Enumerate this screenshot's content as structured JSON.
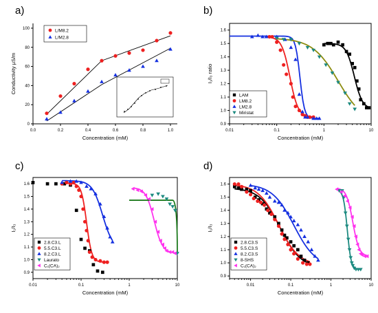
{
  "colors": {
    "red": "#ee2020",
    "blue": "#1530e0",
    "black": "#000000",
    "teal": "#1c8a80",
    "magenta": "#ff33ee",
    "olive": "#8c8c10",
    "darkgreen": "#1d7a1d"
  },
  "chart_data": [
    {
      "panel": "a)",
      "type": "scatter",
      "xlabel": "Concentration (mM)",
      "ylabel": "Conductivity μS/m",
      "xlim": [
        0,
        1.05
      ],
      "ylim": [
        0,
        105
      ],
      "xticks": [
        0.0,
        0.2,
        0.4,
        0.6,
        0.8,
        1.0
      ],
      "yticks": [
        0,
        20,
        40,
        60,
        80,
        100
      ],
      "xticklabels": [
        "0.0",
        "0.2",
        "0.4",
        "0.6",
        "0.8",
        "1.0"
      ],
      "yticklabels": [
        "0",
        "20",
        "40",
        "60",
        "80",
        "100"
      ],
      "legend_position": "top-left",
      "series": [
        {
          "name": "L/M8.2",
          "marker": "circle",
          "color": "red",
          "x": [
            0.1,
            0.2,
            0.3,
            0.4,
            0.5,
            0.6,
            0.7,
            0.8,
            0.9,
            1.0
          ],
          "y": [
            11,
            29,
            42,
            57,
            66,
            71,
            74,
            77,
            87,
            95
          ]
        },
        {
          "name": "L/M2.8",
          "marker": "triangle",
          "color": "blue",
          "x": [
            0.1,
            0.2,
            0.3,
            0.4,
            0.5,
            0.6,
            0.7,
            0.8,
            0.9,
            1.0
          ],
          "y": [
            5,
            12,
            24,
            34,
            44,
            51,
            56,
            60,
            66,
            78
          ]
        }
      ],
      "lines": [
        {
          "color": "black",
          "points": [
            [
              0.1,
              10
            ],
            [
              0.5,
              66
            ],
            [
              1.0,
              92
            ]
          ]
        },
        {
          "color": "black",
          "points": [
            [
              0.1,
              3
            ],
            [
              0.5,
              41
            ],
            [
              1.0,
              79
            ]
          ]
        }
      ],
      "inset": {
        "note": "small inset plot of conductivity vs concentration with a break point"
      }
    },
    {
      "panel": "b)",
      "type": "scatter",
      "xscale": "log",
      "xlabel": "Concentration (mM)",
      "ylabel": "I₁/I₃ ratio",
      "xlim": [
        0.01,
        10
      ],
      "ylim": [
        0.9,
        1.65
      ],
      "xticks": [
        0.01,
        0.1,
        1,
        10
      ],
      "xticklabels": [
        "0.01",
        "0.1",
        "1",
        "10"
      ],
      "yticks": [
        0.9,
        1.0,
        1.1,
        1.2,
        1.3,
        1.4,
        1.5,
        1.6
      ],
      "yticklabels": [
        "0.9",
        "1.0",
        "1.1",
        "1.2",
        "1.3",
        "1.4",
        "1.5",
        "1.6"
      ],
      "legend_position": "bottom-left",
      "series": [
        {
          "name": "LAM",
          "marker": "square",
          "color": "black",
          "x": [
            1.0,
            1.2,
            1.4,
            1.6,
            2.0,
            2.5,
            3.0,
            3.5,
            4.0,
            4.5,
            5.0,
            5.5,
            6.0,
            7.0,
            8.0,
            9.0
          ],
          "y": [
            1.49,
            1.5,
            1.5,
            1.49,
            1.51,
            1.49,
            1.44,
            1.42,
            1.35,
            1.32,
            1.22,
            1.16,
            1.08,
            1.05,
            1.02,
            1.02
          ]
        },
        {
          "name": "LM8.2",
          "marker": "circle",
          "color": "red",
          "x": [
            0.07,
            0.08,
            0.1,
            0.12,
            0.14,
            0.16,
            0.2,
            0.22,
            0.25,
            0.3,
            0.35,
            0.4,
            0.45,
            0.5,
            0.6
          ],
          "y": [
            1.55,
            1.55,
            1.51,
            1.45,
            1.34,
            1.27,
            1.2,
            1.1,
            1.03,
            1.0,
            0.97,
            0.96,
            0.95,
            0.95,
            0.95
          ]
        },
        {
          "name": "LM2.8",
          "marker": "triangle",
          "color": "blue",
          "x": [
            0.03,
            0.04,
            0.05,
            0.06,
            0.1,
            0.15,
            0.2,
            0.25,
            0.3,
            0.35,
            0.4,
            0.45,
            0.6,
            0.7,
            0.8
          ],
          "y": [
            1.55,
            1.56,
            1.55,
            1.55,
            1.55,
            1.53,
            1.47,
            1.38,
            1.12,
            0.99,
            0.95,
            0.95,
            0.94,
            0.94,
            0.94
          ]
        },
        {
          "name": "Miristat",
          "marker": "triangle-down",
          "color": "teal",
          "x": [
            0.1,
            0.14,
            0.2,
            0.3,
            0.45,
            0.6,
            0.8,
            1.1,
            1.5,
            2.0,
            2.8,
            3.5,
            4.5
          ],
          "y": [
            1.54,
            1.53,
            1.53,
            1.5,
            1.47,
            1.45,
            1.4,
            1.34,
            1.28,
            1.21,
            1.13,
            1.05,
            1.01
          ]
        }
      ]
    },
    {
      "panel": "c)",
      "type": "scatter",
      "xscale": "log",
      "xlabel": "Concentration (mM)",
      "ylabel": "I₁/I₃",
      "xlim": [
        0.01,
        10
      ],
      "ylim": [
        0.85,
        1.65
      ],
      "xticks": [
        0.01,
        0.1,
        1,
        10
      ],
      "xticklabels": [
        "0.01",
        "0.1",
        "1",
        "10"
      ],
      "yticks": [
        0.9,
        1.0,
        1.1,
        1.2,
        1.3,
        1.4,
        1.5,
        1.6
      ],
      "yticklabels": [
        "0.9",
        "1.0",
        "1.1",
        "1.2",
        "1.3",
        "1.4",
        "1.5",
        "1.6"
      ],
      "legend_position": "bottom-left",
      "series": [
        {
          "name": "2.8.C3.L",
          "marker": "square",
          "color": "black",
          "x": [
            0.01,
            0.02,
            0.03,
            0.045,
            0.06,
            0.08,
            0.1,
            0.12,
            0.15,
            0.18,
            0.22,
            0.28
          ],
          "y": [
            1.61,
            1.6,
            1.6,
            1.6,
            1.59,
            1.39,
            1.16,
            1.09,
            1.07,
            0.96,
            0.91,
            0.9
          ]
        },
        {
          "name": "5.5.C3.L",
          "marker": "circle",
          "color": "red",
          "x": [
            0.04,
            0.05,
            0.06,
            0.07,
            0.08,
            0.09,
            0.1,
            0.11,
            0.12,
            0.13,
            0.14,
            0.15,
            0.17,
            0.2,
            0.25,
            0.3,
            0.35
          ],
          "y": [
            1.6,
            1.61,
            1.6,
            1.61,
            1.58,
            1.55,
            1.5,
            1.4,
            1.3,
            1.23,
            1.15,
            1.06,
            1.02,
            1.0,
            0.99,
            0.98,
            0.98
          ]
        },
        {
          "name": "8.2.C3.L",
          "marker": "triangle",
          "color": "blue",
          "x": [
            0.04,
            0.06,
            0.08,
            0.1,
            0.13,
            0.16,
            0.2,
            0.25,
            0.3,
            0.35,
            0.4,
            0.45
          ],
          "y": [
            1.61,
            1.62,
            1.62,
            1.61,
            1.58,
            1.56,
            1.52,
            1.44,
            1.34,
            1.25,
            1.18,
            1.14
          ]
        },
        {
          "name": "Laurato",
          "marker": "triangle-down",
          "color": "teal",
          "x": [
            3.0,
            4.0,
            5.0,
            6.0,
            7.0,
            8.0,
            9.0,
            10.0
          ],
          "y": [
            1.51,
            1.52,
            1.5,
            1.48,
            1.44,
            1.42,
            1.39,
            1.05
          ]
        },
        {
          "name": "C₁(CA)₂",
          "marker": "triangle-left",
          "color": "magenta",
          "x": [
            1.2,
            1.5,
            1.8,
            2.2,
            2.6,
            3.0,
            3.5,
            4.0,
            4.5,
            5.0,
            5.5,
            6.0,
            7.0,
            8.0,
            9.0
          ],
          "y": [
            1.56,
            1.55,
            1.54,
            1.51,
            1.48,
            1.4,
            1.3,
            1.22,
            1.15,
            1.12,
            1.09,
            1.07,
            1.06,
            1.06,
            1.05
          ]
        }
      ],
      "horizontal_line": {
        "color": "darkgreen",
        "x": [
          1.0,
          8.0
        ],
        "y": 1.47
      }
    },
    {
      "panel": "d)",
      "type": "scatter",
      "xscale": "log",
      "xlabel": "Concentration (mM)",
      "ylabel": "I₁/I₃",
      "xlim": [
        0.003,
        10
      ],
      "ylim": [
        0.88,
        1.65
      ],
      "xticks": [
        0.01,
        0.1,
        1,
        10
      ],
      "xticklabels": [
        "0.01",
        "0.1",
        "1",
        "10"
      ],
      "yticks": [
        0.9,
        1.0,
        1.1,
        1.2,
        1.3,
        1.4,
        1.5,
        1.6
      ],
      "yticklabels": [
        "0.9",
        "1.0",
        "1.1",
        "1.2",
        "1.3",
        "1.4",
        "1.5",
        "1.6"
      ],
      "legend_position": "bottom-left",
      "series": [
        {
          "name": "2.8.C3.S",
          "marker": "square",
          "color": "black",
          "x": [
            0.004,
            0.005,
            0.006,
            0.008,
            0.01,
            0.013,
            0.016,
            0.02,
            0.025,
            0.03,
            0.04,
            0.05,
            0.06,
            0.07,
            0.08,
            0.1,
            0.12,
            0.15,
            0.18,
            0.22,
            0.27
          ],
          "y": [
            1.58,
            1.57,
            1.56,
            1.56,
            1.55,
            1.5,
            1.48,
            1.45,
            1.41,
            1.38,
            1.35,
            1.3,
            1.25,
            1.21,
            1.19,
            1.16,
            1.13,
            1.1,
            1.05,
            1.02,
            1.0
          ]
        },
        {
          "name": "5.5.C3.S",
          "marker": "circle",
          "color": "red",
          "x": [
            0.004,
            0.005,
            0.006,
            0.008,
            0.01,
            0.012,
            0.015,
            0.018,
            0.022,
            0.027,
            0.033,
            0.04,
            0.05,
            0.06,
            0.07,
            0.085,
            0.1,
            0.12,
            0.15,
            0.2,
            0.25,
            0.3
          ],
          "y": [
            1.6,
            1.6,
            1.58,
            1.54,
            1.52,
            1.49,
            1.47,
            1.46,
            1.44,
            1.4,
            1.37,
            1.33,
            1.28,
            1.22,
            1.18,
            1.14,
            1.1,
            1.07,
            1.03,
            1.0,
            0.99,
            0.99
          ]
        },
        {
          "name": "8.2.C3.S",
          "marker": "triangle",
          "color": "blue",
          "x": [
            0.01,
            0.013,
            0.016,
            0.02,
            0.025,
            0.03,
            0.04,
            0.05,
            0.06,
            0.07,
            0.085,
            0.1,
            0.12,
            0.15,
            0.18,
            0.22,
            0.27,
            0.33,
            0.4,
            0.48
          ],
          "y": [
            1.59,
            1.57,
            1.56,
            1.55,
            1.53,
            1.5,
            1.47,
            1.46,
            1.44,
            1.4,
            1.38,
            1.35,
            1.32,
            1.29,
            1.25,
            1.2,
            1.16,
            1.1,
            1.05,
            1.02
          ]
        },
        {
          "name": "8-SHS",
          "marker": "triangle-down",
          "color": "teal",
          "x": [
            1.6,
            1.9,
            2.1,
            2.3,
            2.5,
            2.7,
            2.9,
            3.1,
            3.3,
            3.5,
            3.8,
            4.2,
            4.8,
            5.5
          ],
          "y": [
            1.55,
            1.55,
            1.5,
            1.38,
            1.28,
            1.18,
            1.1,
            1.04,
            1.0,
            0.98,
            0.96,
            0.95,
            0.95,
            0.95
          ]
        },
        {
          "name": "C₁(CA)₂",
          "marker": "triangle-left",
          "color": "magenta",
          "x": [
            1.4,
            1.8,
            2.2,
            2.6,
            3.0,
            3.4,
            3.8,
            4.2,
            4.6,
            5.0,
            5.5,
            6.0,
            7.0,
            8.0
          ],
          "y": [
            1.56,
            1.54,
            1.51,
            1.47,
            1.42,
            1.35,
            1.28,
            1.2,
            1.14,
            1.1,
            1.07,
            1.06,
            1.05,
            1.05
          ]
        }
      ]
    }
  ]
}
